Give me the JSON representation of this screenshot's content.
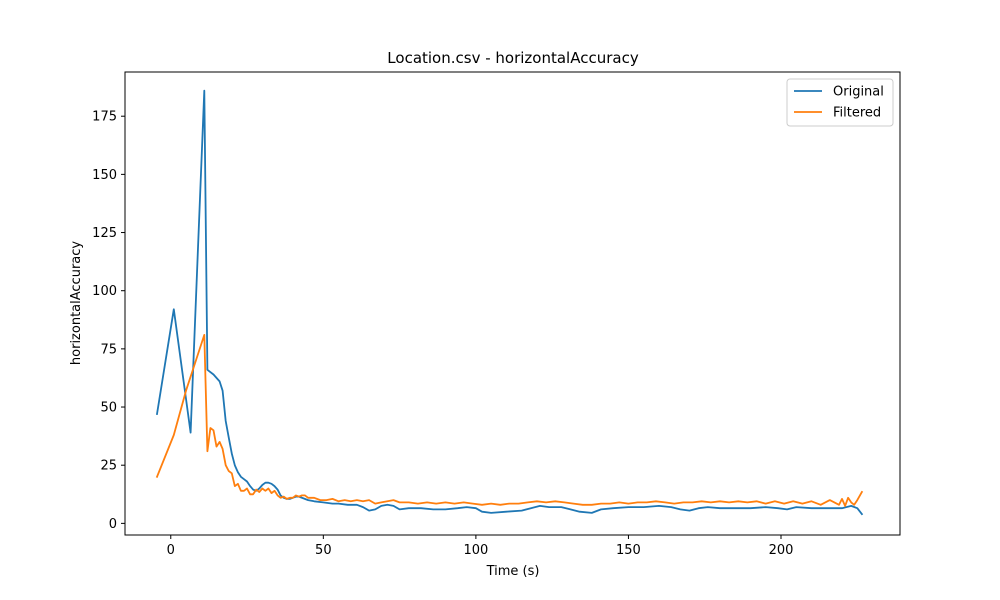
{
  "chart_data": {
    "type": "line",
    "title": "Location.csv - horizontalAccuracy",
    "xlabel": "Time (s)",
    "ylabel": "horizontalAccuracy",
    "xlim": [
      -15,
      239
    ],
    "ylim": [
      -5,
      194
    ],
    "xticks": [
      0,
      50,
      100,
      150,
      200
    ],
    "yticks": [
      0,
      25,
      50,
      75,
      100,
      125,
      150,
      175
    ],
    "grid": false,
    "legend_position": "top-right",
    "colors": {
      "Original": "#1f77b4",
      "Filtered": "#ff7f0e"
    },
    "series": [
      {
        "name": "Original",
        "x": [
          -4.5,
          1,
          6.5,
          11,
          12,
          14,
          16,
          17,
          18,
          19,
          20,
          21,
          22,
          23,
          24,
          25,
          26,
          27,
          28,
          29,
          30,
          31,
          32,
          33,
          34,
          35,
          36,
          37,
          38,
          39,
          40,
          41,
          42,
          45,
          47,
          50,
          53,
          55,
          58,
          61,
          63,
          65,
          67,
          69,
          71,
          73,
          75,
          78,
          82,
          86,
          90,
          94,
          97,
          100,
          102,
          105,
          110,
          115,
          118,
          121,
          124,
          128,
          131,
          134,
          138,
          141,
          145,
          150,
          155,
          160,
          164,
          167,
          170,
          173,
          176,
          180,
          185,
          190,
          195,
          199,
          202,
          205,
          210,
          215,
          220,
          223,
          225,
          226.5
        ],
        "y": [
          47,
          92,
          39,
          186,
          66,
          64,
          61,
          57,
          44,
          37,
          30,
          25,
          22,
          20,
          19,
          18,
          16,
          14.5,
          14,
          15,
          16.5,
          17.5,
          17.5,
          17,
          16,
          14.5,
          12,
          11,
          10.5,
          10.5,
          11,
          11.5,
          11.5,
          10,
          9.5,
          9,
          8.5,
          8.5,
          8,
          8,
          7,
          5.5,
          6,
          7.5,
          8,
          7.5,
          6,
          6.5,
          6.5,
          6,
          6,
          6.5,
          7,
          6.5,
          5,
          4.5,
          5,
          5.5,
          6.5,
          7.5,
          7,
          7,
          6,
          5,
          4.5,
          6,
          6.5,
          7,
          7,
          7.5,
          7,
          6,
          5.5,
          6.5,
          7,
          6.5,
          6.5,
          6.5,
          7,
          6.5,
          6,
          7,
          6.5,
          6.5,
          6.5,
          7.5,
          6.5,
          4
        ]
      },
      {
        "name": "Filtered",
        "x": [
          -4.5,
          1,
          5,
          7,
          11,
          12,
          13,
          14,
          15,
          16,
          17,
          18,
          19,
          20,
          21,
          22,
          23,
          24,
          25,
          26,
          27,
          28,
          29,
          30,
          31,
          32,
          33,
          34,
          35,
          36,
          37,
          38,
          39,
          40,
          41,
          42,
          43,
          44,
          45,
          47,
          49,
          51,
          53,
          55,
          57,
          59,
          61,
          63,
          65,
          67,
          69,
          71,
          73,
          75,
          78,
          81,
          84,
          87,
          90,
          93,
          96,
          99,
          102,
          105,
          108,
          111,
          114,
          117,
          120,
          123,
          126,
          129,
          132,
          135,
          138,
          141,
          144,
          147,
          150,
          153,
          156,
          159,
          162,
          165,
          168,
          171,
          174,
          177,
          180,
          183,
          186,
          189,
          192,
          195,
          198,
          201,
          204,
          207,
          210,
          213,
          216,
          219,
          220,
          221,
          222,
          223,
          224,
          225,
          226.5
        ],
        "y": [
          20,
          38,
          57,
          65,
          81,
          31,
          41,
          40,
          33,
          35,
          32,
          25,
          22.5,
          21.5,
          16,
          17,
          14,
          14,
          15,
          12.5,
          12.5,
          14.5,
          13.5,
          15,
          14,
          15,
          13,
          14,
          12,
          11,
          11.5,
          10.5,
          11,
          11,
          12,
          11.5,
          12,
          12,
          11,
          11,
          10,
          10,
          10.5,
          9.5,
          10,
          9.5,
          10,
          9.5,
          10,
          8.5,
          9,
          9.5,
          10,
          9,
          9,
          8.5,
          9,
          8.5,
          9,
          8.5,
          9,
          8.5,
          8,
          8.5,
          8,
          8.5,
          8.5,
          9,
          9.5,
          9,
          9.5,
          9,
          8.5,
          8,
          8,
          8.5,
          8.5,
          9,
          8.5,
          9,
          9,
          9.5,
          9,
          8.5,
          9,
          9,
          9.5,
          9,
          9.5,
          9,
          9.5,
          9,
          9.5,
          8.5,
          9.5,
          8.5,
          9.5,
          8.5,
          9.5,
          8,
          10,
          8,
          10.5,
          7.5,
          11,
          9,
          8,
          10,
          13.5
        ]
      }
    ]
  }
}
